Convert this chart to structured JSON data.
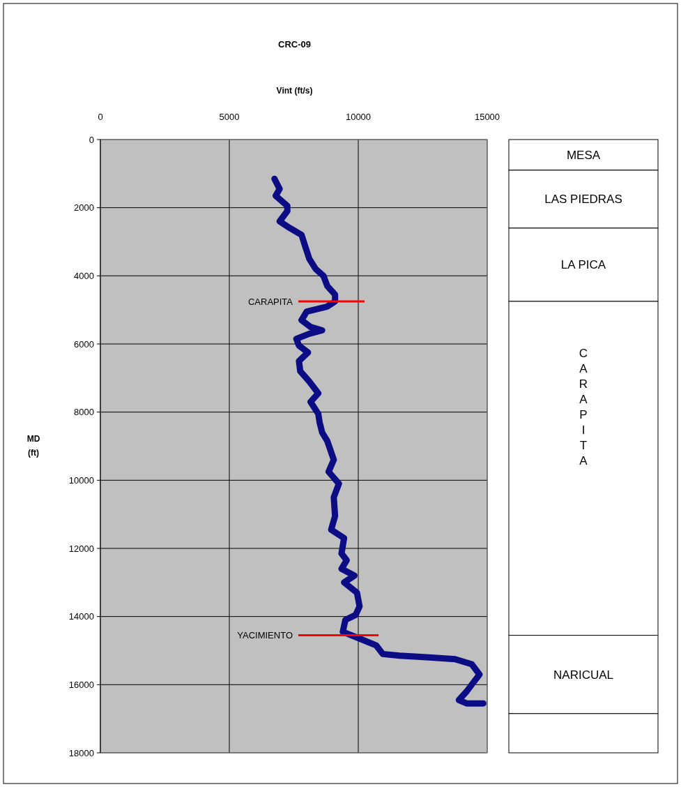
{
  "chart_data": [
    {
      "type": "line",
      "title": "CRC-09",
      "xlabel": "Vint (ft/s)",
      "ylabel": "MD (ft)",
      "xlim": [
        0,
        15000
      ],
      "xticks": [
        0,
        5000,
        10000,
        15000
      ],
      "ylim": [
        18000,
        0
      ],
      "yticks": [
        0,
        2000,
        4000,
        6000,
        8000,
        10000,
        12000,
        14000,
        16000,
        18000
      ],
      "grid": true,
      "series": [
        {
          "color": "#0c0c84",
          "x": [
            6750,
            6950,
            6800,
            7250,
            7250,
            6950,
            7350,
            7800,
            7950,
            8100,
            8350,
            8650,
            8800,
            9100,
            9100,
            8800,
            8000,
            7800,
            8150,
            8600,
            8100,
            7600,
            7700,
            8050,
            7700,
            7750,
            8100,
            8450,
            8150,
            8450,
            8500,
            8600,
            8800,
            9050,
            8850,
            9250,
            9050,
            9100,
            8950,
            9450,
            9350,
            9550,
            9350,
            9850,
            9450,
            9950,
            10050,
            9900,
            9500,
            9400,
            9900,
            10700,
            10950,
            11600,
            12750,
            13750,
            14400,
            14700,
            14450,
            14200,
            13900,
            14200,
            14850
          ],
          "values": [
            1150,
            1450,
            1650,
            1950,
            2100,
            2400,
            2600,
            2800,
            3150,
            3500,
            3800,
            4000,
            4300,
            4550,
            4750,
            4900,
            5050,
            5300,
            5500,
            5600,
            5700,
            5850,
            6050,
            6250,
            6500,
            6800,
            7100,
            7450,
            7700,
            8050,
            8300,
            8600,
            8850,
            9400,
            9750,
            10100,
            10500,
            11050,
            11450,
            11700,
            12150,
            12350,
            12600,
            12800,
            13000,
            13300,
            13700,
            13950,
            14100,
            14450,
            14600,
            14850,
            15100,
            15150,
            15200,
            15250,
            15400,
            15700,
            15950,
            16200,
            16450,
            16550,
            16550
          ]
        }
      ],
      "ref_lines": [
        {
          "axis": "y",
          "value": 4750,
          "label": "CARAPITA",
          "color": "#ff0000"
        },
        {
          "axis": "y",
          "value": 14550,
          "label": "YACIMIENTO",
          "color": "#ff0000"
        }
      ]
    },
    {
      "type": "bar",
      "stacked": true,
      "categories": [
        null
      ],
      "ylim": [
        18000,
        0
      ],
      "series": [
        {
          "name": "MESA",
          "color": "#ffffff",
          "values": [
            900
          ]
        },
        {
          "name": "LAS PIEDRAS",
          "color": "#ffffff",
          "values": [
            1700
          ]
        },
        {
          "name": "LA PICA",
          "color": "#ffffff",
          "values": [
            2150
          ]
        },
        {
          "name": "CARAPITA",
          "color": "#ffffff",
          "values": [
            9800
          ]
        },
        {
          "name": "NARICUAL",
          "color": "#ffffff",
          "values": [
            2300
          ]
        },
        {
          "color": "#ffffff",
          "values": [
            1150
          ]
        }
      ]
    }
  ]
}
